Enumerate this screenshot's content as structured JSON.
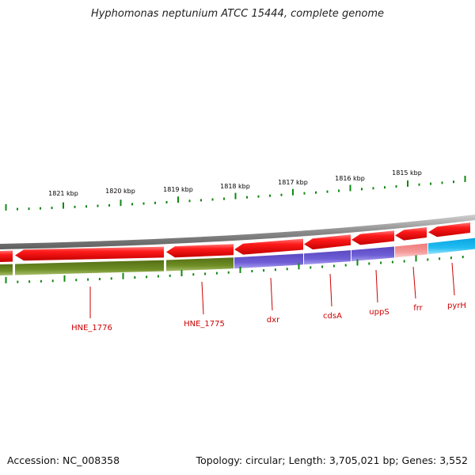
{
  "title": "Hyphomonas neptunium ATCC 15444, complete genome",
  "footer": {
    "accession": "Accession: NC_008358",
    "topology": "Topology: circular; Length: 3,705,021 bp; Genes: 3,552"
  },
  "kbp_labels": [
    "1821 kbp",
    "1820 kbp",
    "1819 kbp",
    "1818 kbp",
    "1817 kbp",
    "1816 kbp",
    "1815 kbp"
  ],
  "gene_labels": [
    "HNE_1776",
    "HNE_1775",
    "dxr",
    "cdsA",
    "uppS",
    "frr",
    "pyrH"
  ],
  "colors": {
    "backbone": "#8c8c8c",
    "cds": "#ee1111",
    "cog_olive": "#6b8a22",
    "cog_purple": "#6a58cf",
    "cog_pink": "#f28a8a",
    "cog_cyan": "#19b6ef",
    "tick": "#118811",
    "label": "#cc0000"
  }
}
